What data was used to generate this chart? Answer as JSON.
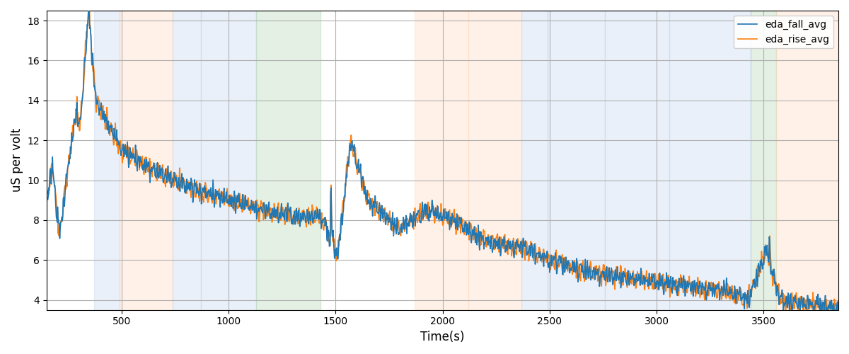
{
  "xlabel": "Time(s)",
  "ylabel": "uS per volt",
  "ylim": [
    3.5,
    18.5
  ],
  "xlim": [
    150,
    3850
  ],
  "line_fall_color": "#1f77b4",
  "line_rise_color": "#ff7f0e",
  "line_fall_label": "eda_fall_avg",
  "line_rise_label": "eda_rise_avg",
  "line_width": 1.2,
  "background_color": "#ffffff",
  "grid_color": "#b0b0b0",
  "band_alpha": 0.25,
  "bands": [
    {
      "xmin": 370,
      "xmax": 490,
      "color": "blue"
    },
    {
      "xmin": 490,
      "xmax": 740,
      "color": "orange"
    },
    {
      "xmin": 740,
      "xmax": 870,
      "color": "blue"
    },
    {
      "xmin": 870,
      "xmax": 1130,
      "color": "blue"
    },
    {
      "xmin": 1130,
      "xmax": 1430,
      "color": "green"
    },
    {
      "xmin": 1870,
      "xmax": 2120,
      "color": "orange"
    },
    {
      "xmin": 2120,
      "xmax": 2370,
      "color": "orange"
    },
    {
      "xmin": 2370,
      "xmax": 2490,
      "color": "blue"
    },
    {
      "xmin": 2490,
      "xmax": 2760,
      "color": "blue"
    },
    {
      "xmin": 2760,
      "xmax": 3060,
      "color": "blue"
    },
    {
      "xmin": 3060,
      "xmax": 3440,
      "color": "blue"
    },
    {
      "xmin": 3440,
      "xmax": 3560,
      "color": "green"
    },
    {
      "xmin": 3560,
      "xmax": 3850,
      "color": "orange"
    }
  ],
  "band_colors": {
    "blue": "#aec6e8",
    "orange": "#ffcba4",
    "green": "#90c490"
  },
  "yticks": [
    4,
    6,
    8,
    10,
    12,
    14,
    16,
    18
  ],
  "xticks": [
    500,
    1000,
    1500,
    2000,
    2500,
    3000,
    3500
  ]
}
